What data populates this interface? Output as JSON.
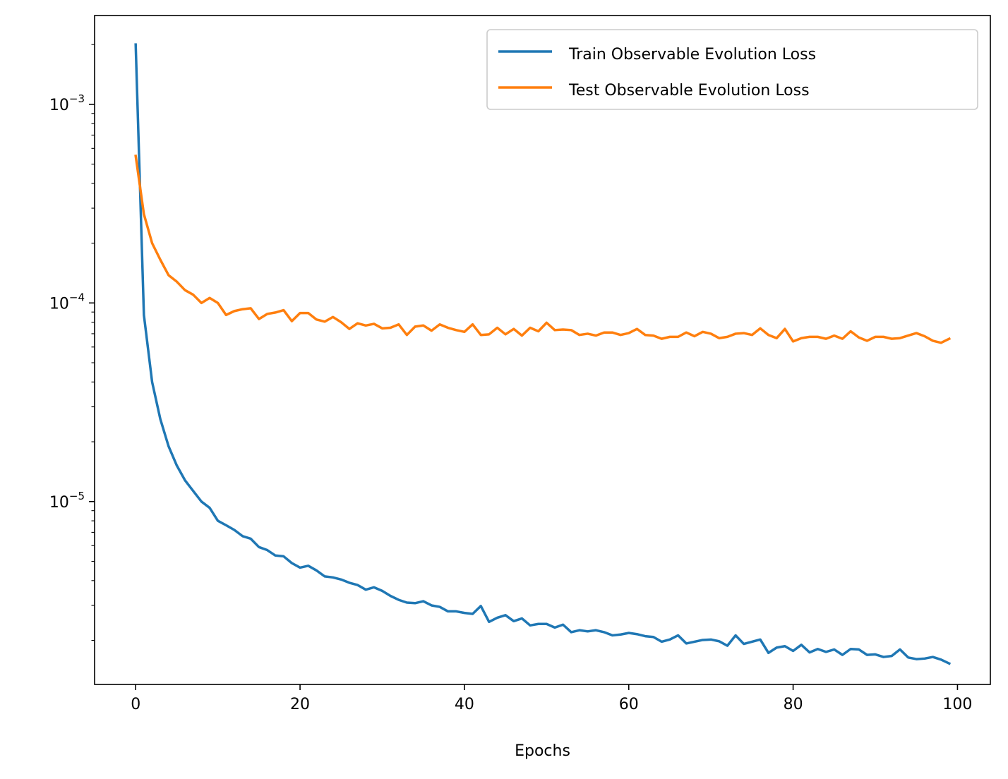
{
  "chart_data": {
    "type": "line",
    "title": "",
    "xlabel": "Epochs",
    "ylabel": "",
    "xlim": [
      -5,
      104
    ],
    "ylim": [
      1.2e-06,
      0.0028
    ],
    "yscale": "log",
    "grid": false,
    "legend_position": "top-right",
    "x_ticks": [
      0,
      20,
      40,
      60,
      80,
      100
    ],
    "y_major_ticks": [
      {
        "value": 1e-05,
        "base": "10",
        "exp": "−5"
      },
      {
        "value": 0.0001,
        "base": "10",
        "exp": "−4"
      },
      {
        "value": 0.001,
        "base": "10",
        "exp": "−3"
      }
    ],
    "series": [
      {
        "name": "Train Observable Evolution Loss",
        "color": "#1f77b4",
        "x_start": 0,
        "values": [
          0.002,
          8.7e-05,
          4e-05,
          2.6e-05,
          1.9e-05,
          1.52e-05,
          1.28e-05,
          1.13e-05,
          1e-05,
          9.3e-06,
          8e-06,
          7.6e-06,
          7.2e-06,
          6.7e-06,
          6.5e-06,
          5.9e-06,
          5.7e-06,
          5.35e-06,
          5.3e-06,
          4.9e-06,
          4.65e-06,
          4.75e-06,
          4.5e-06,
          4.2e-06,
          4.15e-06,
          4.05e-06,
          3.9e-06,
          3.8e-06,
          3.6e-06,
          3.7e-06,
          3.55e-06,
          3.35e-06,
          3.2e-06,
          3.1e-06,
          3.08e-06,
          3.15e-06,
          3e-06,
          2.95e-06,
          2.8e-06,
          2.8e-06,
          2.75e-06,
          2.72e-06,
          2.98e-06,
          2.48e-06,
          2.6e-06,
          2.68e-06,
          2.5e-06,
          2.58e-06,
          2.38e-06,
          2.42e-06,
          2.42e-06,
          2.32e-06,
          2.4e-06,
          2.2e-06,
          2.25e-06,
          2.22e-06,
          2.25e-06,
          2.2e-06,
          2.12e-06,
          2.14e-06,
          2.18e-06,
          2.15e-06,
          2.1e-06,
          2.08e-06,
          1.97e-06,
          2.02e-06,
          2.12e-06,
          1.93e-06,
          1.97e-06,
          2.01e-06,
          2.02e-06,
          1.98e-06,
          1.88e-06,
          2.12e-06,
          1.92e-06,
          1.97e-06,
          2.02e-06,
          1.73e-06,
          1.84e-06,
          1.87e-06,
          1.77e-06,
          1.9e-06,
          1.74e-06,
          1.81e-06,
          1.75e-06,
          1.8e-06,
          1.69e-06,
          1.81e-06,
          1.8e-06,
          1.69e-06,
          1.7e-06,
          1.65e-06,
          1.67e-06,
          1.8e-06,
          1.64e-06,
          1.61e-06,
          1.62e-06,
          1.65e-06,
          1.6e-06,
          1.53e-06
        ]
      },
      {
        "name": "Test Observable Evolution Loss",
        "color": "#ff7f0e",
        "x_start": 0,
        "values": [
          0.00055,
          0.00028,
          0.0002,
          0.000165,
          0.000138,
          0.000128,
          0.000116,
          0.00011,
          0.0001,
          0.000106,
          0.0001,
          8.7e-05,
          9.1e-05,
          9.3e-05,
          9.4e-05,
          8.3e-05,
          8.8e-05,
          8.95e-05,
          9.2e-05,
          8.1e-05,
          8.9e-05,
          8.9e-05,
          8.25e-05,
          8.05e-05,
          8.5e-05,
          8e-05,
          7.4e-05,
          7.9e-05,
          7.7e-05,
          7.85e-05,
          7.45e-05,
          7.5e-05,
          7.8e-05,
          6.9e-05,
          7.6e-05,
          7.7e-05,
          7.25e-05,
          7.8e-05,
          7.5e-05,
          7.3e-05,
          7.15e-05,
          7.8e-05,
          6.9e-05,
          6.95e-05,
          7.5e-05,
          6.95e-05,
          7.4e-05,
          6.85e-05,
          7.5e-05,
          7.2e-05,
          7.95e-05,
          7.3e-05,
          7.35e-05,
          7.3e-05,
          6.9e-05,
          7e-05,
          6.85e-05,
          7.1e-05,
          7.1e-05,
          6.9e-05,
          7.05e-05,
          7.4e-05,
          6.9e-05,
          6.85e-05,
          6.6e-05,
          6.75e-05,
          6.75e-05,
          7.1e-05,
          6.8e-05,
          7.15e-05,
          7e-05,
          6.65e-05,
          6.75e-05,
          7e-05,
          7.05e-05,
          6.9e-05,
          7.45e-05,
          6.9e-05,
          6.65e-05,
          7.4e-05,
          6.4e-05,
          6.65e-05,
          6.75e-05,
          6.75e-05,
          6.6e-05,
          6.85e-05,
          6.6e-05,
          7.2e-05,
          6.7e-05,
          6.45e-05,
          6.75e-05,
          6.75e-05,
          6.6e-05,
          6.65e-05,
          6.85e-05,
          7.05e-05,
          6.8e-05,
          6.45e-05,
          6.3e-05,
          6.6e-05
        ]
      }
    ]
  }
}
